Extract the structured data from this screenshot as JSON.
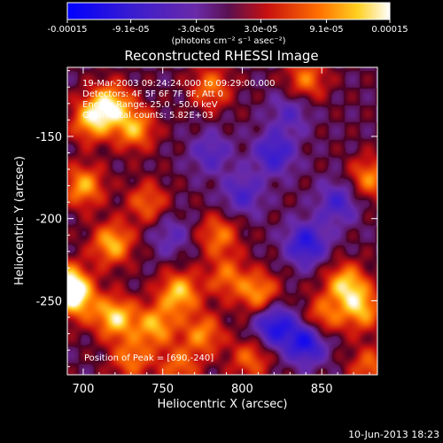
{
  "colorbar": {
    "ticks": [
      "-0.00015",
      "-9.1e-05",
      "-3.0e-05",
      "3.0e-05",
      "9.1e-05",
      "0.00015"
    ],
    "tick_values": [
      -0.00015,
      -9.1e-05,
      -3e-05,
      3e-05,
      9.1e-05,
      0.00015
    ],
    "range": [
      -0.00015,
      0.00015
    ],
    "unit_label": "(photons cm⁻² s⁻¹ asec⁻²)"
  },
  "chart_data": {
    "type": "heatmap",
    "title": "Reconstructed RHESSI Image",
    "xlabel": "Heliocentric X (arcsec)",
    "ylabel": "Heliocentric Y (arcsec)",
    "xlim": [
      690,
      885
    ],
    "ylim": [
      -295,
      -108
    ],
    "xticks": [
      700,
      750,
      800,
      850
    ],
    "yticks": [
      -150,
      -200,
      -250
    ],
    "xtick_labels": [
      "700",
      "750",
      "800",
      "850"
    ],
    "ytick_labels": [
      "-150",
      "-200",
      "-250"
    ],
    "colormap": "blue-purple-red-yellow-white",
    "blobs": [
      {
        "x": 690,
        "y": -240,
        "v": 1.0
      },
      {
        "x": 697,
        "y": -250,
        "v": 0.6
      },
      {
        "x": 720,
        "y": -260,
        "v": 0.85
      },
      {
        "x": 705,
        "y": -140,
        "v": 0.75
      },
      {
        "x": 717,
        "y": -130,
        "v": 0.8
      },
      {
        "x": 732,
        "y": -145,
        "v": 0.7
      },
      {
        "x": 700,
        "y": -180,
        "v": 0.7
      },
      {
        "x": 718,
        "y": -215,
        "v": 0.75
      },
      {
        "x": 740,
        "y": -190,
        "v": 0.5
      },
      {
        "x": 745,
        "y": -265,
        "v": 0.7
      },
      {
        "x": 760,
        "y": -245,
        "v": 0.8
      },
      {
        "x": 775,
        "y": -270,
        "v": 0.6
      },
      {
        "x": 785,
        "y": -210,
        "v": 0.55
      },
      {
        "x": 790,
        "y": -235,
        "v": 0.5
      },
      {
        "x": 780,
        "y": -120,
        "v": 0.55
      },
      {
        "x": 810,
        "y": -245,
        "v": 0.65
      },
      {
        "x": 805,
        "y": -285,
        "v": 0.5
      },
      {
        "x": 865,
        "y": -240,
        "v": 0.8
      },
      {
        "x": 875,
        "y": -255,
        "v": 0.7
      },
      {
        "x": 850,
        "y": -260,
        "v": 0.55
      },
      {
        "x": 880,
        "y": -175,
        "v": 0.6
      },
      {
        "x": 880,
        "y": -290,
        "v": 0.5
      },
      {
        "x": 840,
        "y": -115,
        "v": 0.55
      },
      {
        "x": 760,
        "y": -290,
        "v": 0.5
      },
      {
        "x": 730,
        "y": -285,
        "v": 0.55
      },
      {
        "x": 820,
        "y": -160,
        "v": -0.6
      },
      {
        "x": 840,
        "y": -215,
        "v": -0.7
      },
      {
        "x": 820,
        "y": -265,
        "v": -0.75
      },
      {
        "x": 840,
        "y": -275,
        "v": -0.8
      },
      {
        "x": 800,
        "y": -185,
        "v": -0.45
      },
      {
        "x": 780,
        "y": -160,
        "v": -0.4
      },
      {
        "x": 860,
        "y": -190,
        "v": -0.5
      },
      {
        "x": 755,
        "y": -210,
        "v": -0.3
      },
      {
        "x": 830,
        "y": -135,
        "v": -0.35
      }
    ],
    "annotations": [
      "19-Mar-2003 09:24:24.000 to 09:29:00.000",
      "Detectors: 4F 5F 6F 7F 8F, Att 0",
      "Energy Range: 25.0 - 50.0 keV",
      "Clean     Total counts: 5.82E+03",
      "Position of Peak = [690,-240]"
    ]
  },
  "footer": {
    "timestamp": "10-Jun-2013 18:23"
  }
}
